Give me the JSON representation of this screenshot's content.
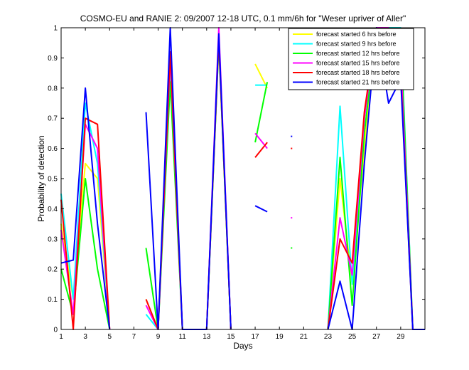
{
  "chart_data": {
    "type": "line",
    "title": "COSMO-EU and RANIE 2: 09/2007 12-18 UTC, 0.1 mm/6h for \"Weser upriver of Aller\"",
    "xlabel": "Days",
    "ylabel": "Probability of detection",
    "xlim": [
      1,
      31
    ],
    "ylim": [
      0,
      1
    ],
    "xticks": [
      1,
      3,
      5,
      7,
      9,
      11,
      13,
      15,
      17,
      19,
      21,
      23,
      25,
      27,
      29
    ],
    "yticks": [
      0,
      0.1,
      0.2,
      0.3,
      0.4,
      0.5,
      0.6,
      0.7,
      0.8,
      0.9,
      1
    ],
    "ytick_labels": [
      "0",
      "0.1",
      "0.2",
      "0.3",
      "0.4",
      "0.5",
      "0.6",
      "0.7",
      "0.8",
      "0.9",
      "1"
    ],
    "legend_position": "top-right",
    "series": [
      {
        "name": "forecast started 6 hrs before",
        "color": "#ffff00",
        "y": [
          0.35,
          0.1,
          0.55,
          0.5,
          0.0,
          null,
          null,
          0.1,
          0.0,
          0.9,
          0.0,
          0.0,
          0.0,
          0.95,
          0.0,
          null,
          0.88,
          0.8,
          null,
          null,
          null,
          null,
          0.0,
          0.5,
          0.15,
          0.6,
          1.0,
          1.0,
          0.9,
          0.0,
          0.0
        ]
      },
      {
        "name": "forecast started 9 hrs before",
        "color": "#00ffff",
        "y": [
          0.45,
          0.1,
          0.75,
          0.55,
          0.0,
          null,
          null,
          0.05,
          0.0,
          0.85,
          0.0,
          0.0,
          0.0,
          0.95,
          0.0,
          null,
          0.81,
          0.81,
          null,
          null,
          null,
          null,
          0.0,
          0.74,
          0.15,
          0.7,
          1.0,
          1.0,
          1.0,
          0.0,
          0.0
        ]
      },
      {
        "name": "forecast started 12 hrs before",
        "color": "#00ff00",
        "y": [
          0.2,
          0.05,
          0.5,
          0.2,
          0.0,
          null,
          null,
          0.27,
          0.0,
          0.82,
          0.0,
          0.0,
          0.0,
          0.95,
          0.0,
          null,
          0.62,
          0.82,
          null,
          0.27,
          null,
          null,
          0.0,
          0.57,
          0.08,
          0.65,
          1.0,
          1.0,
          0.98,
          0.0,
          0.0
        ]
      },
      {
        "name": "forecast started 15 hrs before",
        "color": "#ff00ff",
        "y": [
          0.33,
          0.05,
          0.68,
          0.6,
          0.0,
          null,
          null,
          0.08,
          0.0,
          0.9,
          0.0,
          0.0,
          0.0,
          1.0,
          0.0,
          null,
          0.65,
          0.6,
          null,
          0.37,
          null,
          null,
          0.0,
          0.37,
          0.18,
          0.7,
          1.0,
          1.0,
          0.9,
          0.0,
          0.0
        ]
      },
      {
        "name": "forecast started 18 hrs before",
        "color": "#ff0000",
        "y": [
          0.43,
          0.0,
          0.7,
          0.68,
          0.0,
          null,
          null,
          0.1,
          0.0,
          0.92,
          0.0,
          0.0,
          0.0,
          0.96,
          0.0,
          null,
          0.57,
          0.62,
          null,
          0.6,
          null,
          null,
          0.0,
          0.3,
          0.22,
          0.72,
          1.0,
          0.98,
          0.85,
          0.0,
          0.0
        ]
      },
      {
        "name": "forecast started 21 hrs before",
        "color": "#0000ff",
        "y": [
          0.22,
          0.23,
          0.8,
          0.35,
          0.0,
          null,
          null,
          0.72,
          0.0,
          1.0,
          0.0,
          0.0,
          0.0,
          0.98,
          0.0,
          null,
          0.41,
          0.39,
          null,
          0.64,
          null,
          null,
          0.0,
          0.16,
          0.0,
          0.55,
          1.0,
          0.75,
          0.83,
          0.0,
          0.0
        ]
      }
    ]
  }
}
